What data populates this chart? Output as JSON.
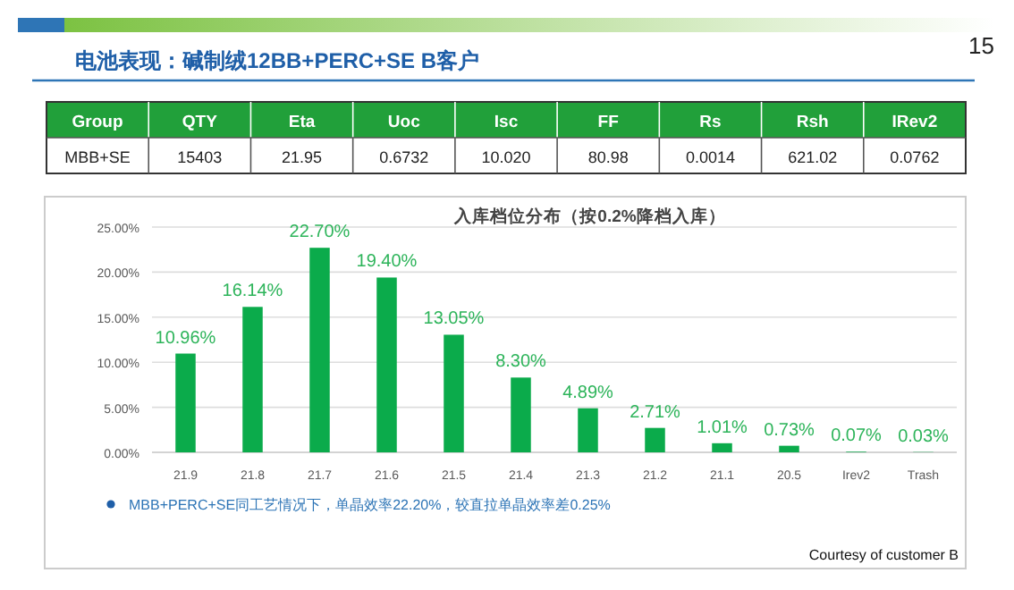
{
  "chart_data": [
    {
      "type": "other",
      "title": "电池表现：碱制绒12BB+PERC+SE    B客户",
      "subtitle": "15",
      "annotations": [
        "Group",
        "QTY",
        "Eta",
        "Uoc",
        "Isc",
        "FF",
        "Rs",
        "Rsh",
        "IRev2",
        "MBB+SE",
        "15403",
        "21.95",
        "0.6732",
        "10.020",
        "80.98",
        "0.0014",
        "621.02",
        "0.0762"
      ]
    },
    {
      "type": "bar",
      "title": "入库档位分布（按0.2%降档入库）",
      "categories": [
        "21.9",
        "21.8",
        "21.7",
        "21.6",
        "21.5",
        "21.4",
        "21.3",
        "21.2",
        "21.1",
        "20.5",
        "Irev2",
        "Trash"
      ],
      "values": [
        10.96,
        16.14,
        22.7,
        19.4,
        13.05,
        8.3,
        4.89,
        2.71,
        1.01,
        0.73,
        0.07,
        0.03
      ],
      "value_labels": [
        "10.96%",
        "16.14%",
        "22.70%",
        "19.40%",
        "13.05%",
        "8.30%",
        "4.89%",
        "2.71%",
        "1.01%",
        "0.73%",
        "0.07%",
        "0.03%"
      ],
      "color": "#0bab4b",
      "ylim": [
        0,
        25
      ],
      "yticks": [
        {
          "value": 0,
          "label": "0.00%"
        },
        {
          "value": 5,
          "label": "5.00%"
        },
        {
          "value": 10,
          "label": "10.00%"
        },
        {
          "value": 15,
          "label": "15.00%"
        },
        {
          "value": 20,
          "label": "20.00%"
        },
        {
          "value": 25,
          "label": "25.00%"
        }
      ],
      "grid": "y",
      "annotations": [
        "MBB+PERC+SE同工艺情况下，单晶效率22.20%，较直拉单晶效率差0.25%",
        "Courtesy of customer B"
      ]
    }
  ]
}
